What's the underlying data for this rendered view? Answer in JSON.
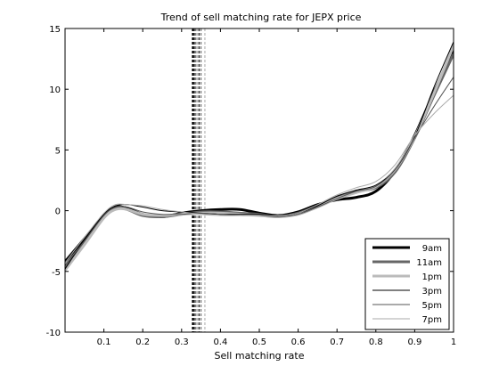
{
  "chart_data": {
    "type": "line",
    "title": "Trend of sell matching rate for JEPX price",
    "xlabel": "Sell matching rate",
    "ylabel": "",
    "xlim": [
      0,
      1
    ],
    "ylim": [
      -10,
      15
    ],
    "xticks": [
      0.1,
      0.2,
      0.3,
      0.4,
      0.5,
      0.6,
      0.7,
      0.8,
      0.9,
      1
    ],
    "xtick_labels": [
      "0.1",
      "0.2",
      "0.3",
      "0.4",
      "0.5",
      "0.6",
      "0.7",
      "0.8",
      "0.9",
      "1"
    ],
    "yticks": [
      -10,
      -5,
      0,
      5,
      10,
      15
    ],
    "ytick_labels": [
      "-10",
      "-5",
      "0",
      "5",
      "10",
      "15"
    ],
    "grid": false,
    "legend_position": "bottom-right",
    "vlines": [
      {
        "x": 0.33,
        "series": "9am"
      },
      {
        "x": 0.335,
        "series": "11am"
      },
      {
        "x": 0.34,
        "series": "1pm"
      },
      {
        "x": 0.345,
        "series": "3pm"
      },
      {
        "x": 0.35,
        "series": "5pm"
      },
      {
        "x": 0.36,
        "series": "7pm"
      }
    ],
    "series": [
      {
        "name": "9am",
        "color": "#000000",
        "width": 3,
        "x": [
          0,
          0.05,
          0.1,
          0.13,
          0.16,
          0.2,
          0.25,
          0.3,
          0.35,
          0.4,
          0.45,
          0.5,
          0.55,
          0.6,
          0.65,
          0.7,
          0.75,
          0.8,
          0.85,
          0.9,
          0.95,
          1
        ],
        "y": [
          -4.2,
          -2.3,
          -0.4,
          0.3,
          0.2,
          -0.3,
          -0.5,
          -0.2,
          0.0,
          0.1,
          0.1,
          -0.2,
          -0.4,
          -0.1,
          0.5,
          0.9,
          1.1,
          1.6,
          3.3,
          6.2,
          9.8,
          13.2
        ]
      },
      {
        "name": "11am",
        "color": "#666666",
        "width": 3,
        "x": [
          0,
          0.05,
          0.1,
          0.13,
          0.16,
          0.2,
          0.25,
          0.3,
          0.35,
          0.4,
          0.45,
          0.5,
          0.55,
          0.6,
          0.65,
          0.7,
          0.75,
          0.8,
          0.85,
          0.9,
          0.95,
          1
        ],
        "y": [
          -4.6,
          -2.6,
          -0.5,
          0.2,
          0.1,
          -0.4,
          -0.5,
          -0.3,
          -0.1,
          -0.1,
          -0.2,
          -0.3,
          -0.5,
          -0.2,
          0.4,
          1.1,
          1.6,
          1.9,
          3.2,
          6.0,
          9.5,
          12.9
        ]
      },
      {
        "name": "1pm",
        "color": "#bbbbbb",
        "width": 3,
        "x": [
          0,
          0.05,
          0.1,
          0.13,
          0.16,
          0.2,
          0.25,
          0.3,
          0.35,
          0.4,
          0.45,
          0.5,
          0.55,
          0.6,
          0.65,
          0.7,
          0.75,
          0.8,
          0.85,
          0.9,
          0.95,
          1
        ],
        "y": [
          -4.9,
          -2.8,
          -0.6,
          0.1,
          0.1,
          -0.3,
          -0.4,
          -0.3,
          -0.2,
          -0.2,
          -0.3,
          -0.4,
          -0.5,
          -0.3,
          0.3,
          1.0,
          1.5,
          2.0,
          3.4,
          6.1,
          9.7,
          13.6
        ]
      },
      {
        "name": "3pm",
        "color": "#000000",
        "width": 1,
        "x": [
          0,
          0.05,
          0.1,
          0.13,
          0.16,
          0.2,
          0.25,
          0.3,
          0.35,
          0.4,
          0.45,
          0.5,
          0.55,
          0.6,
          0.65,
          0.7,
          0.75,
          0.8,
          0.85,
          0.9,
          0.95,
          1
        ],
        "y": [
          -4.8,
          -2.4,
          -0.3,
          0.4,
          0.5,
          0.3,
          0.0,
          -0.1,
          -0.2,
          -0.3,
          -0.3,
          -0.3,
          -0.4,
          -0.2,
          0.4,
          1.2,
          1.7,
          2.1,
          3.4,
          6.1,
          10.2,
          13.9
        ]
      },
      {
        "name": "5pm",
        "color": "#555555",
        "width": 1,
        "x": [
          0,
          0.05,
          0.1,
          0.13,
          0.16,
          0.2,
          0.25,
          0.3,
          0.35,
          0.4,
          0.45,
          0.5,
          0.55,
          0.6,
          0.65,
          0.7,
          0.75,
          0.8,
          0.85,
          0.9,
          0.95,
          1
        ],
        "y": [
          -4.5,
          -2.5,
          -0.4,
          0.3,
          0.3,
          -0.1,
          -0.3,
          -0.3,
          -0.2,
          -0.3,
          -0.4,
          -0.4,
          -0.5,
          -0.3,
          0.3,
          1.0,
          1.6,
          2.0,
          3.4,
          6.0,
          8.6,
          11.0
        ]
      },
      {
        "name": "7pm",
        "color": "#aaaaaa",
        "width": 1,
        "x": [
          0,
          0.05,
          0.1,
          0.13,
          0.16,
          0.2,
          0.25,
          0.3,
          0.35,
          0.4,
          0.45,
          0.5,
          0.55,
          0.6,
          0.65,
          0.7,
          0.75,
          0.8,
          0.85,
          0.9,
          0.95,
          1
        ],
        "y": [
          -4.3,
          -2.2,
          -0.2,
          0.5,
          0.5,
          0.4,
          0.1,
          -0.1,
          -0.3,
          -0.4,
          -0.4,
          -0.4,
          -0.4,
          -0.2,
          0.5,
          1.3,
          1.9,
          2.4,
          3.8,
          6.2,
          8.0,
          9.5
        ]
      }
    ]
  }
}
